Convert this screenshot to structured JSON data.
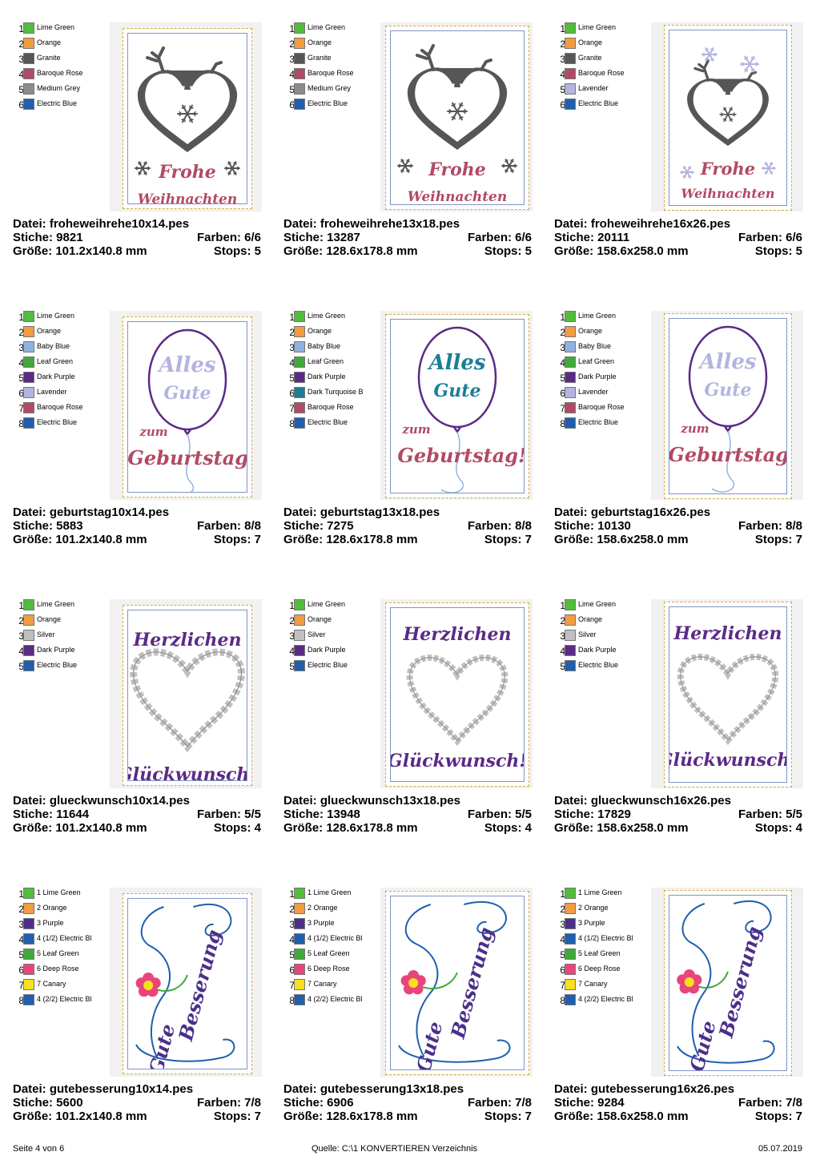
{
  "rows": [
    {
      "motif": "deer",
      "cells": [
        {
          "file": "Datei: froheweihrehe10x14.pes",
          "stiche": "Stiche: 9821",
          "farben": "Farben: 6/6",
          "groesse": "Größe: 101.2x140.8 mm",
          "stops": "Stops: 5",
          "text1": "Frohe",
          "text2": "Weihnachten",
          "colors": [
            {
              "num": "1",
              "name": "Lime Green",
              "hex": "#4fbf3a"
            },
            {
              "num": "2",
              "name": "Orange",
              "hex": "#f39b3f"
            },
            {
              "num": "3",
              "name": "Granite",
              "hex": "#565656"
            },
            {
              "num": "4",
              "name": "Baroque Rose",
              "hex": "#b14a66"
            },
            {
              "num": "5",
              "name": "Medium Grey",
              "hex": "#8c8c8c"
            },
            {
              "num": "6",
              "name": "Electric Blue",
              "hex": "#1f5fae"
            }
          ]
        },
        {
          "file": "Datei: froheweihrehe13x18.pes",
          "stiche": "Stiche: 13287",
          "farben": "Farben: 6/6",
          "groesse": "Größe: 128.6x178.8 mm",
          "stops": "Stops: 5",
          "text1": "Frohe",
          "text2": "Weihnachten",
          "colors": [
            {
              "num": "1",
              "name": "Lime Green",
              "hex": "#4fbf3a"
            },
            {
              "num": "2",
              "name": "Orange",
              "hex": "#f39b3f"
            },
            {
              "num": "3",
              "name": "Granite",
              "hex": "#565656"
            },
            {
              "num": "4",
              "name": "Baroque Rose",
              "hex": "#b14a66"
            },
            {
              "num": "5",
              "name": "Medium Grey",
              "hex": "#8c8c8c"
            },
            {
              "num": "6",
              "name": "Electric Blue",
              "hex": "#1f5fae"
            }
          ]
        },
        {
          "file": "Datei: froheweihrehe16x26.pes",
          "stiche": "Stiche: 20111",
          "farben": "Farben: 6/6",
          "groesse": "Größe: 158.6x258.0 mm",
          "stops": "Stops: 5",
          "text1": "Frohe",
          "text2": "Weihnachten",
          "colors": [
            {
              "num": "1",
              "name": "Lime Green",
              "hex": "#4fbf3a"
            },
            {
              "num": "2",
              "name": "Orange",
              "hex": "#f39b3f"
            },
            {
              "num": "3",
              "name": "Granite",
              "hex": "#565656"
            },
            {
              "num": "4",
              "name": "Baroque Rose",
              "hex": "#b14a66"
            },
            {
              "num": "5",
              "name": "Lavender",
              "hex": "#b4b4e0"
            },
            {
              "num": "6",
              "name": "Electric Blue",
              "hex": "#1f5fae"
            }
          ]
        }
      ]
    },
    {
      "motif": "balloon",
      "cells": [
        {
          "file": "Datei: geburtstag10x14.pes",
          "stiche": "Stiche: 5883",
          "farben": "Farben: 8/8",
          "groesse": "Größe: 101.2x140.8 mm",
          "stops": "Stops: 7",
          "text1": "Alles",
          "text2": "Gute",
          "text3": "zum",
          "text4": "Geburtstag!",
          "colors": [
            {
              "num": "1",
              "name": "Lime Green",
              "hex": "#4fbf3a"
            },
            {
              "num": "2",
              "name": "Orange",
              "hex": "#f39b3f"
            },
            {
              "num": "3",
              "name": "Baby Blue",
              "hex": "#8fb3de"
            },
            {
              "num": "4",
              "name": "Leaf Green",
              "hex": "#3faa3a"
            },
            {
              "num": "5",
              "name": "Dark Purple",
              "hex": "#5b2a86"
            },
            {
              "num": "6",
              "name": "Lavender",
              "hex": "#b4b4e0"
            },
            {
              "num": "7",
              "name": "Baroque Rose",
              "hex": "#b14a66"
            },
            {
              "num": "8",
              "name": "Electric Blue",
              "hex": "#1f5fae"
            }
          ]
        },
        {
          "file": "Datei: geburtstag13x18.pes",
          "stiche": "Stiche: 7275",
          "farben": "Farben: 8/8",
          "groesse": "Größe: 128.6x178.8 mm",
          "stops": "Stops: 7",
          "text1": "Alles",
          "text2": "Gute",
          "text3": "zum",
          "text4": "Geburtstag!",
          "colors": [
            {
              "num": "1",
              "name": "Lime Green",
              "hex": "#4fbf3a"
            },
            {
              "num": "2",
              "name": "Orange",
              "hex": "#f39b3f"
            },
            {
              "num": "3",
              "name": "Baby Blue",
              "hex": "#8fb3de"
            },
            {
              "num": "4",
              "name": "Leaf Green",
              "hex": "#3faa3a"
            },
            {
              "num": "5",
              "name": "Dark Purple",
              "hex": "#5b2a86"
            },
            {
              "num": "6",
              "name": "Dark Turquoise B",
              "hex": "#1b7f95"
            },
            {
              "num": "7",
              "name": "Baroque Rose",
              "hex": "#b14a66"
            },
            {
              "num": "8",
              "name": "Electric Blue",
              "hex": "#1f5fae"
            }
          ]
        },
        {
          "file": "Datei: geburtstag16x26.pes",
          "stiche": "Stiche: 10130",
          "farben": "Farben: 8/8",
          "groesse": "Größe: 158.6x258.0 mm",
          "stops": "Stops: 7",
          "text1": "Alles",
          "text2": "Gute",
          "text3": "zum",
          "text4": "Geburtstag!",
          "colors": [
            {
              "num": "1",
              "name": "Lime Green",
              "hex": "#4fbf3a"
            },
            {
              "num": "2",
              "name": "Orange",
              "hex": "#f39b3f"
            },
            {
              "num": "3",
              "name": "Baby Blue",
              "hex": "#8fb3de"
            },
            {
              "num": "4",
              "name": "Leaf Green",
              "hex": "#3faa3a"
            },
            {
              "num": "5",
              "name": "Dark Purple",
              "hex": "#5b2a86"
            },
            {
              "num": "6",
              "name": "Lavender",
              "hex": "#b4b4e0"
            },
            {
              "num": "7",
              "name": "Baroque Rose",
              "hex": "#b14a66"
            },
            {
              "num": "8",
              "name": "Electric Blue",
              "hex": "#1f5fae"
            }
          ]
        }
      ]
    },
    {
      "motif": "heart",
      "cells": [
        {
          "file": "Datei: glueckwunsch10x14.pes",
          "stiche": "Stiche: 11644",
          "farben": "Farben: 5/5",
          "groesse": "Größe: 101.2x140.8 mm",
          "stops": "Stops: 4",
          "text1": "Herzlichen",
          "text2": "Glückwunsch!",
          "colors": [
            {
              "num": "1",
              "name": "Lime Green",
              "hex": "#4fbf3a"
            },
            {
              "num": "2",
              "name": "Orange",
              "hex": "#f39b3f"
            },
            {
              "num": "3",
              "name": "Silver",
              "hex": "#c0c0c0"
            },
            {
              "num": "4",
              "name": "Dark Purple",
              "hex": "#5b2a86"
            },
            {
              "num": "5",
              "name": "Electric Blue",
              "hex": "#1f5fae"
            }
          ]
        },
        {
          "file": "Datei: glueckwunsch13x18.pes",
          "stiche": "Stiche: 13948",
          "farben": "Farben: 5/5",
          "groesse": "Größe: 128.6x178.8 mm",
          "stops": "Stops: 4",
          "text1": "Herzlichen",
          "text2": "Glückwunsch!",
          "colors": [
            {
              "num": "1",
              "name": "Lime Green",
              "hex": "#4fbf3a"
            },
            {
              "num": "2",
              "name": "Orange",
              "hex": "#f39b3f"
            },
            {
              "num": "3",
              "name": "Silver",
              "hex": "#c0c0c0"
            },
            {
              "num": "4",
              "name": "Dark Purple",
              "hex": "#5b2a86"
            },
            {
              "num": "5",
              "name": "Electric Blue",
              "hex": "#1f5fae"
            }
          ]
        },
        {
          "file": "Datei: glueckwunsch16x26.pes",
          "stiche": "Stiche: 17829",
          "farben": "Farben: 5/5",
          "groesse": "Größe: 158.6x258.0 mm",
          "stops": "Stops: 4",
          "text1": "Herzlichen",
          "text2": "Glückwunsch!",
          "colors": [
            {
              "num": "1",
              "name": "Lime Green",
              "hex": "#4fbf3a"
            },
            {
              "num": "2",
              "name": "Orange",
              "hex": "#f39b3f"
            },
            {
              "num": "3",
              "name": "Silver",
              "hex": "#c0c0c0"
            },
            {
              "num": "4",
              "name": "Dark Purple",
              "hex": "#5b2a86"
            },
            {
              "num": "5",
              "name": "Electric Blue",
              "hex": "#1f5fae"
            }
          ]
        }
      ]
    },
    {
      "motif": "flower",
      "cells": [
        {
          "file": "Datei: gutebesserung10x14.pes",
          "stiche": "Stiche: 5600",
          "farben": "Farben: 7/8",
          "groesse": "Größe: 101.2x140.8 mm",
          "stops": "Stops: 7",
          "text1": "Gute",
          "text2": "Besserung",
          "colors": [
            {
              "num": "1",
              "name": "1 Lime Green",
              "hex": "#4fbf3a"
            },
            {
              "num": "2",
              "name": "2 Orange",
              "hex": "#f39b3f"
            },
            {
              "num": "3",
              "name": "3 Purple",
              "hex": "#4b2f8a"
            },
            {
              "num": "4",
              "name": "4 (1/2) Electric Bl",
              "hex": "#1f5fae"
            },
            {
              "num": "5",
              "name": "5 Leaf Green",
              "hex": "#3faa3a"
            },
            {
              "num": "6",
              "name": "6 Deep Rose",
              "hex": "#e8457c"
            },
            {
              "num": "7",
              "name": "7 Canary",
              "hex": "#f7e11c"
            },
            {
              "num": "8",
              "name": "4 (2/2) Electric Bl",
              "hex": "#1f5fae"
            }
          ]
        },
        {
          "file": "Datei: gutebesserung13x18.pes",
          "stiche": "Stiche: 6906",
          "farben": "Farben: 7/8",
          "groesse": "Größe: 128.6x178.8 mm",
          "stops": "Stops: 7",
          "text1": "Gute",
          "text2": "Besserung",
          "colors": [
            {
              "num": "1",
              "name": "1 Lime Green",
              "hex": "#4fbf3a"
            },
            {
              "num": "2",
              "name": "2 Orange",
              "hex": "#f39b3f"
            },
            {
              "num": "3",
              "name": "3 Purple",
              "hex": "#4b2f8a"
            },
            {
              "num": "4",
              "name": "4 (1/2) Electric Bl",
              "hex": "#1f5fae"
            },
            {
              "num": "5",
              "name": "5 Leaf Green",
              "hex": "#3faa3a"
            },
            {
              "num": "6",
              "name": "6 Deep Rose",
              "hex": "#e8457c"
            },
            {
              "num": "7",
              "name": "7 Canary",
              "hex": "#f7e11c"
            },
            {
              "num": "8",
              "name": "4 (2/2) Electric Bl",
              "hex": "#1f5fae"
            }
          ]
        },
        {
          "file": "Datei: gutebesserung16x26.pes",
          "stiche": "Stiche: 9284",
          "farben": "Farben: 7/8",
          "groesse": "Größe: 158.6x258.0 mm",
          "stops": "Stops: 7",
          "text1": "Gute",
          "text2": "Besserung",
          "colors": [
            {
              "num": "1",
              "name": "1 Lime Green",
              "hex": "#4fbf3a"
            },
            {
              "num": "2",
              "name": "2 Orange",
              "hex": "#f39b3f"
            },
            {
              "num": "3",
              "name": "3 Purple",
              "hex": "#4b2f8a"
            },
            {
              "num": "4",
              "name": "4 (1/2) Electric Bl",
              "hex": "#1f5fae"
            },
            {
              "num": "5",
              "name": "5 Leaf Green",
              "hex": "#3faa3a"
            },
            {
              "num": "6",
              "name": "6 Deep Rose",
              "hex": "#e8457c"
            },
            {
              "num": "7",
              "name": "7 Canary",
              "hex": "#f7e11c"
            },
            {
              "num": "8",
              "name": "4 (2/2) Electric Bl",
              "hex": "#1f5fae"
            }
          ]
        }
      ]
    }
  ],
  "footer": {
    "page": "Seite 4 von 6",
    "source": "Quelle: C:\\1 KONVERTIEREN Verzeichnis",
    "date": "05.07.2019"
  }
}
